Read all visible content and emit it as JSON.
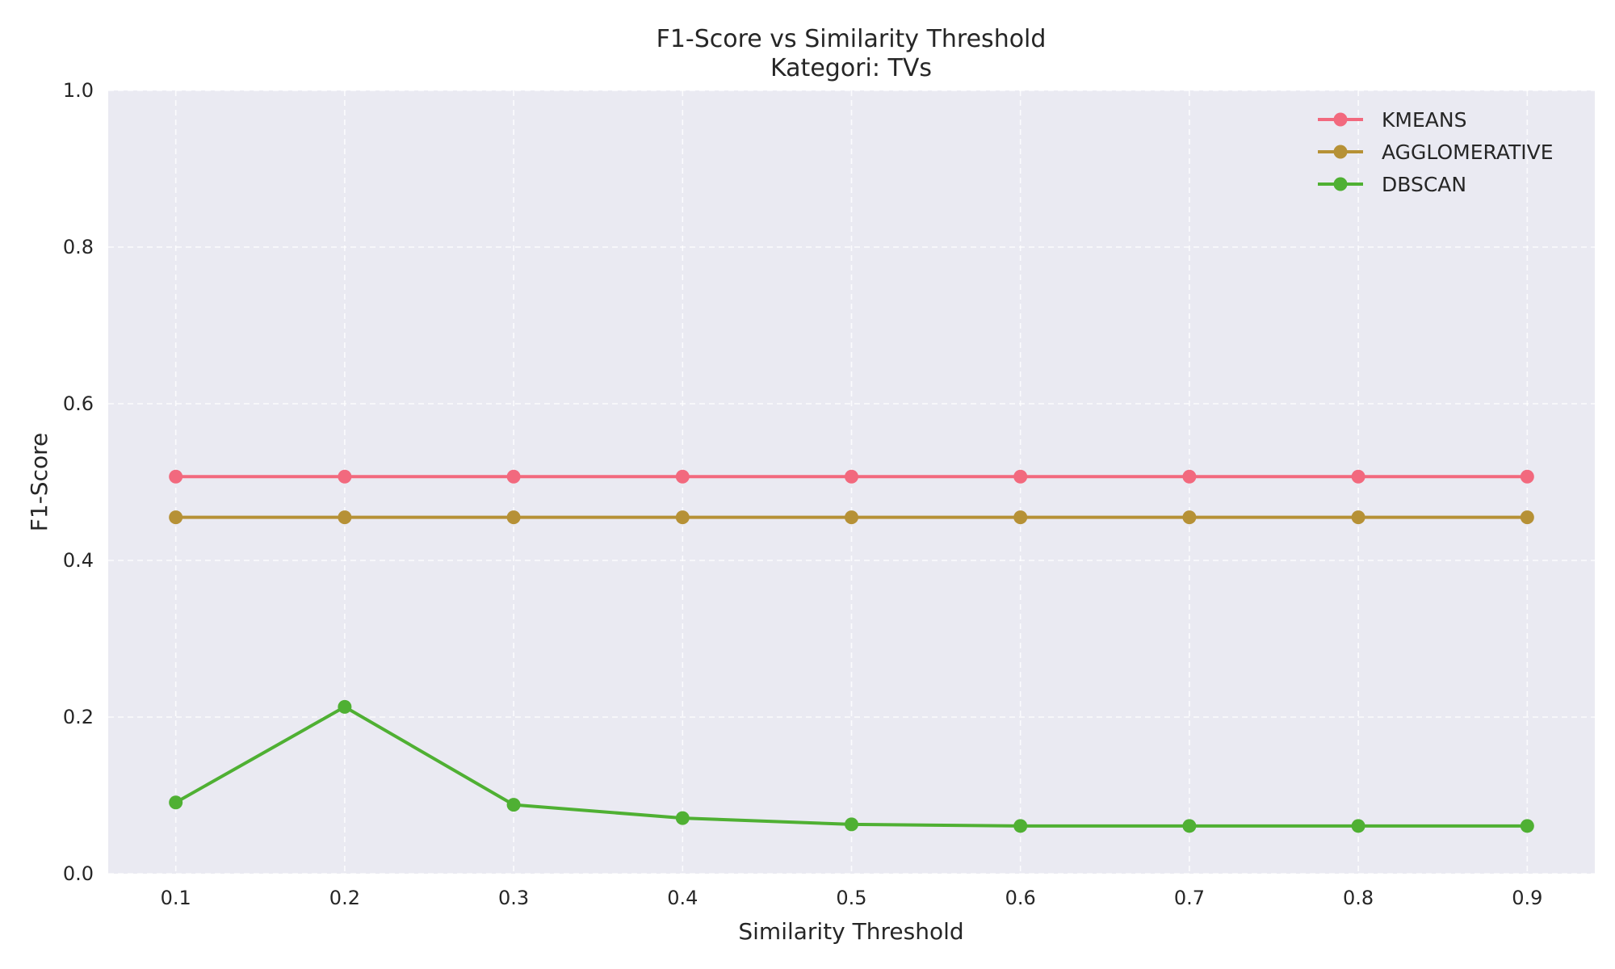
{
  "chart_data": {
    "type": "line",
    "title": "F1-Score vs Similarity Threshold",
    "subtitle": "Kategori: TVs",
    "xlabel": "Similarity Threshold",
    "ylabel": "F1-Score",
    "x": [
      0.1,
      0.2,
      0.3,
      0.4,
      0.5,
      0.6,
      0.7,
      0.8,
      0.9
    ],
    "x_tick_labels": [
      "0.1",
      "0.2",
      "0.3",
      "0.4",
      "0.5",
      "0.6",
      "0.7",
      "0.8",
      "0.9"
    ],
    "y_tick_values": [
      0.0,
      0.2,
      0.4,
      0.6,
      0.8,
      1.0
    ],
    "y_tick_labels": [
      "0.0",
      "0.2",
      "0.4",
      "0.6",
      "0.8",
      "1.0"
    ],
    "xlim": [
      0.06,
      0.94
    ],
    "ylim": [
      0.0,
      1.0
    ],
    "grid": true,
    "legend_position": "top-right",
    "plot_background": "#eaeaf2",
    "series": [
      {
        "name": "KMEANS",
        "color": "#f2697e",
        "marker": "circle",
        "values": [
          0.507,
          0.507,
          0.507,
          0.507,
          0.507,
          0.507,
          0.507,
          0.507,
          0.507
        ]
      },
      {
        "name": "AGGLOMERATIVE",
        "color": "#b69136",
        "marker": "circle",
        "values": [
          0.455,
          0.455,
          0.455,
          0.455,
          0.455,
          0.455,
          0.455,
          0.455,
          0.455
        ]
      },
      {
        "name": "DBSCAN",
        "color": "#4fb033",
        "marker": "circle",
        "values": [
          0.091,
          0.213,
          0.088,
          0.071,
          0.063,
          0.061,
          0.061,
          0.061,
          0.061
        ]
      }
    ]
  }
}
